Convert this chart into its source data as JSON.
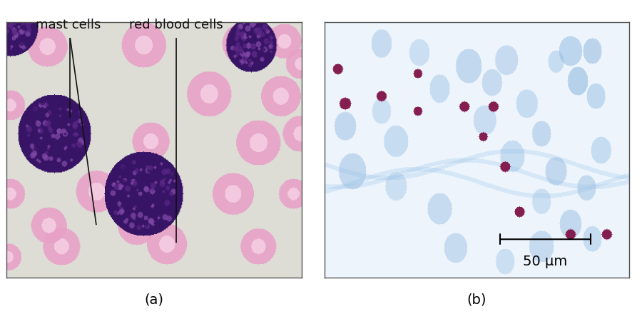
{
  "fig_width": 9.0,
  "fig_height": 4.47,
  "dpi": 100,
  "background_color": "#ffffff",
  "panel_a": {
    "label": "(a)",
    "label_fontsize": 14
  },
  "panel_b": {
    "label": "(b)",
    "label_fontsize": 14,
    "scalebar_text": "50 μm",
    "scalebar_fontsize": 14
  },
  "panel_border_color": "#555555",
  "panel_border_lw": 1.0,
  "annotation_color": "#111111",
  "annotation_fontsize": 13
}
